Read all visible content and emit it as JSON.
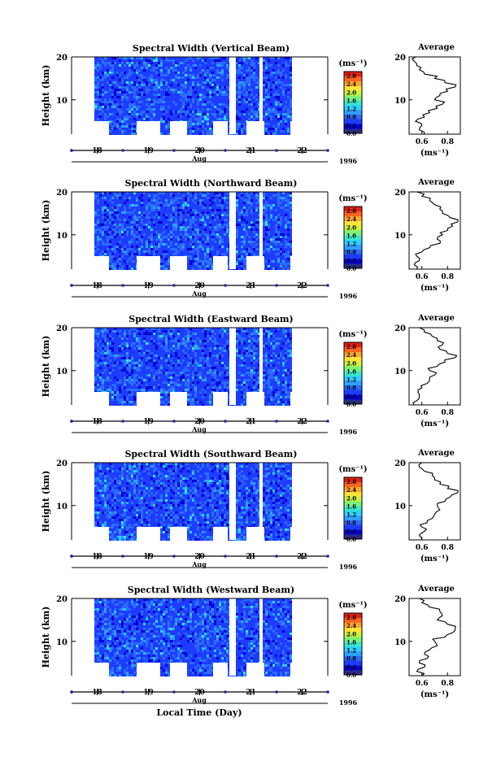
{
  "figure": {
    "xlabel_common": "Local Time (Day)",
    "month_label": "Aug",
    "year_label": "1996",
    "colorbar": {
      "unit_label": "(ms⁻¹)",
      "ticks": [
        "0.0",
        "0.4",
        "0.8",
        "1.2",
        "1.6",
        "2.0",
        "2.4",
        "2.8"
      ],
      "range": [
        0.0,
        3.0
      ],
      "colors": [
        "#2b2b80",
        "#0000d8",
        "#1e3cff",
        "#2a6cff",
        "#2fa0ff",
        "#29d2ff",
        "#3ae7c8",
        "#7df17a",
        "#c8f53c",
        "#ffe23a",
        "#ffa52a",
        "#ff6420",
        "#e02018"
      ]
    },
    "profile": {
      "title": "Average",
      "xlabel": "(ms⁻¹)",
      "yticks": [
        10,
        20
      ]
    }
  },
  "chart_data": [
    {
      "type": "heatmap",
      "title": "Spectral Width (Vertical Beam)",
      "ylabel": "Height (km)",
      "ylim": [
        2,
        20
      ],
      "yticks": [
        10,
        20
      ],
      "xlim": [
        17.5,
        22.5
      ],
      "xticks": [
        "18",
        "19",
        "20",
        "21",
        "22"
      ],
      "zlim": [
        0.0,
        3.0
      ],
      "profile": {
        "xticks": [
          "0.6",
          "0.8"
        ],
        "xlim": [
          0.5,
          0.9
        ],
        "height": [
          2,
          3,
          4,
          5,
          6,
          7,
          8,
          9,
          10,
          11,
          12,
          13,
          14,
          15,
          16,
          17,
          18,
          19,
          20
        ],
        "width": [
          0.62,
          0.58,
          0.6,
          0.55,
          0.62,
          0.66,
          0.72,
          0.76,
          0.7,
          0.74,
          0.8,
          0.86,
          0.78,
          0.7,
          0.62,
          0.58,
          0.56,
          0.54,
          0.55
        ]
      }
    },
    {
      "type": "heatmap",
      "title": "Spectral Width (Northward Beam)",
      "ylabel": "Height (km)",
      "ylim": [
        2,
        20
      ],
      "yticks": [
        10,
        20
      ],
      "xlim": [
        17.5,
        22.5
      ],
      "xticks": [
        "18",
        "19",
        "20",
        "21",
        "22"
      ],
      "zlim": [
        0.0,
        3.0
      ],
      "profile": {
        "xticks": [
          "0.6",
          "0.8"
        ],
        "xlim": [
          0.5,
          0.9
        ],
        "height": [
          2,
          3,
          4,
          5,
          6,
          7,
          8,
          9,
          10,
          11,
          12,
          13,
          14,
          15,
          16,
          17,
          18,
          19,
          20
        ],
        "width": [
          0.56,
          0.54,
          0.58,
          0.56,
          0.6,
          0.66,
          0.74,
          0.72,
          0.76,
          0.8,
          0.84,
          0.88,
          0.82,
          0.76,
          0.74,
          0.7,
          0.66,
          0.6,
          0.56
        ]
      }
    },
    {
      "type": "heatmap",
      "title": "Spectral Width (Eastward Beam)",
      "ylabel": "Height (km)",
      "ylim": [
        2,
        20
      ],
      "yticks": [
        10,
        20
      ],
      "xlim": [
        17.5,
        22.5
      ],
      "xticks": [
        "18",
        "19",
        "20",
        "21",
        "22"
      ],
      "zlim": [
        0.0,
        3.0
      ],
      "profile": {
        "xticks": [
          "0.6",
          "0.8"
        ],
        "xlim": [
          0.5,
          0.9
        ],
        "height": [
          2,
          3,
          4,
          5,
          6,
          7,
          8,
          9,
          10,
          11,
          12,
          13,
          14,
          15,
          16,
          17,
          18,
          19,
          20
        ],
        "width": [
          0.54,
          0.56,
          0.58,
          0.57,
          0.6,
          0.64,
          0.66,
          0.7,
          0.66,
          0.72,
          0.78,
          0.86,
          0.8,
          0.74,
          0.76,
          0.72,
          0.68,
          0.62,
          0.58
        ]
      }
    },
    {
      "type": "heatmap",
      "title": "Spectral Width (Southward Beam)",
      "ylabel": "Height (km)",
      "ylim": [
        2,
        20
      ],
      "yticks": [
        10,
        20
      ],
      "xlim": [
        17.5,
        22.5
      ],
      "xticks": [
        "18",
        "19",
        "20",
        "21",
        "22"
      ],
      "zlim": [
        0.0,
        3.0
      ],
      "profile": {
        "xticks": [
          "0.6",
          "0.8"
        ],
        "xlim": [
          0.5,
          0.9
        ],
        "height": [
          2,
          3,
          4,
          5,
          6,
          7,
          8,
          9,
          10,
          11,
          12,
          13,
          14,
          15,
          16,
          17,
          18,
          19,
          20
        ],
        "width": [
          0.6,
          0.58,
          0.62,
          0.6,
          0.64,
          0.68,
          0.7,
          0.74,
          0.72,
          0.78,
          0.82,
          0.88,
          0.8,
          0.74,
          0.7,
          0.68,
          0.62,
          0.58,
          0.6
        ]
      }
    },
    {
      "type": "heatmap",
      "title": "Spectral Width (Westward Beam)",
      "ylabel": "Height (km)",
      "ylim": [
        2,
        20
      ],
      "yticks": [
        10,
        20
      ],
      "xlim": [
        17.5,
        22.5
      ],
      "xticks": [
        "18",
        "19",
        "20",
        "21",
        "22"
      ],
      "zlim": [
        0.0,
        3.0
      ],
      "profile": {
        "xticks": [
          "0.6",
          "0.8"
        ],
        "xlim": [
          0.5,
          0.9
        ],
        "height": [
          2,
          3,
          4,
          5,
          6,
          7,
          8,
          9,
          10,
          11,
          12,
          13,
          14,
          15,
          16,
          17,
          18,
          19,
          20
        ],
        "width": [
          0.6,
          0.56,
          0.62,
          0.58,
          0.64,
          0.62,
          0.66,
          0.72,
          0.7,
          0.78,
          0.84,
          0.86,
          0.8,
          0.72,
          0.76,
          0.74,
          0.66,
          0.6,
          0.58
        ]
      }
    }
  ]
}
